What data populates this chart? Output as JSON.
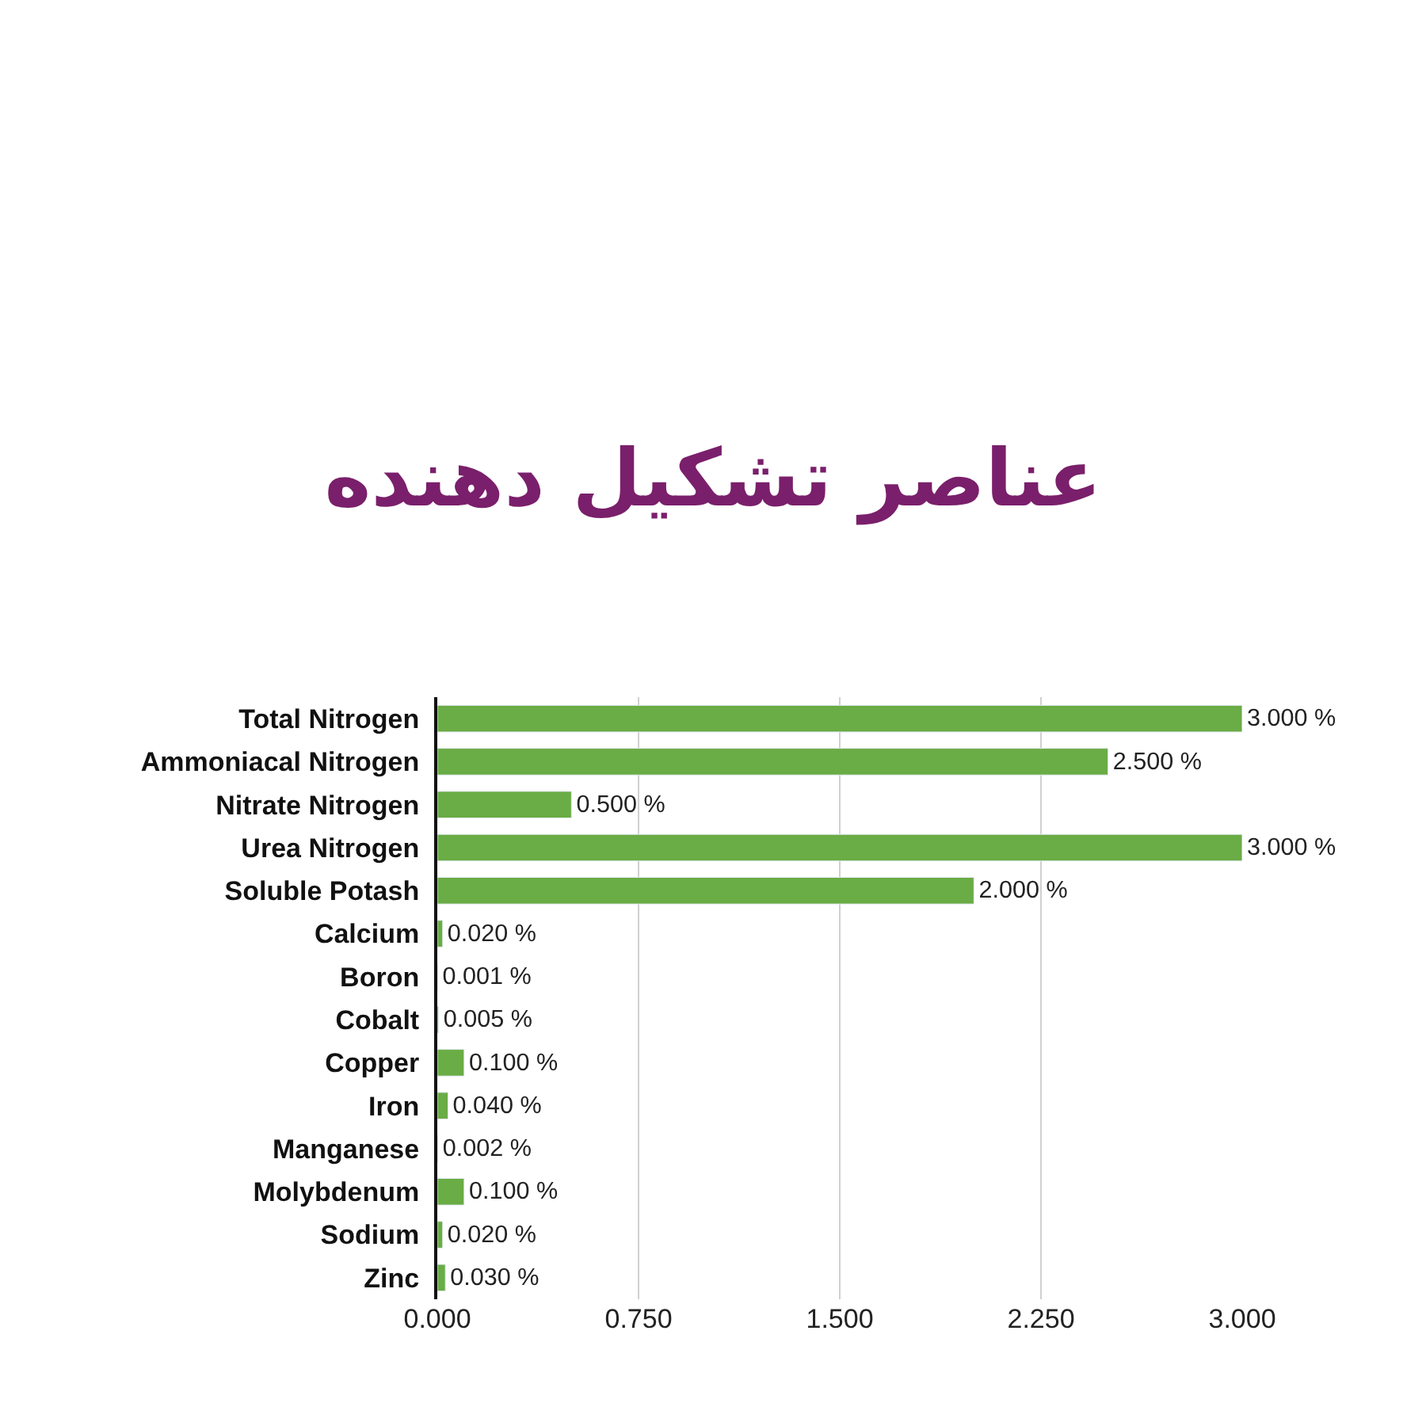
{
  "chart_data": {
    "type": "bar",
    "orientation": "horizontal",
    "title": "عناصر تشکیل دهنده",
    "categories": [
      "Total Nitrogen",
      "Ammoniacal Nitrogen",
      "Nitrate Nitrogen",
      "Urea Nitrogen",
      "Soluble Potash",
      "Calcium",
      "Boron",
      "Cobalt",
      "Copper",
      "Iron",
      "Manganese",
      "Molybdenum",
      "Sodium",
      "Zinc"
    ],
    "values": [
      3.0,
      2.5,
      0.5,
      3.0,
      2.0,
      0.02,
      0.001,
      0.005,
      0.1,
      0.04,
      0.002,
      0.1,
      0.02,
      0.03
    ],
    "value_labels": [
      "3.000 %",
      "2.500 %",
      "0.500 %",
      "3.000 %",
      "2.000 %",
      "0.020 %",
      "0.001 %",
      "0.005 %",
      "0.100 %",
      "0.040 %",
      "0.002 %",
      "0.100 %",
      "0.020 %",
      "0.030 %"
    ],
    "color": "#6aac45",
    "xlim": [
      0,
      3.0
    ],
    "xticks": [
      {
        "value": 0,
        "label": "0.000"
      },
      {
        "value": 0.75,
        "label": "0.750"
      },
      {
        "value": 1.5,
        "label": "1.500"
      },
      {
        "value": 2.25,
        "label": "2.250"
      },
      {
        "value": 3.0,
        "label": "3.000"
      }
    ],
    "grid": "x",
    "legend": false
  }
}
